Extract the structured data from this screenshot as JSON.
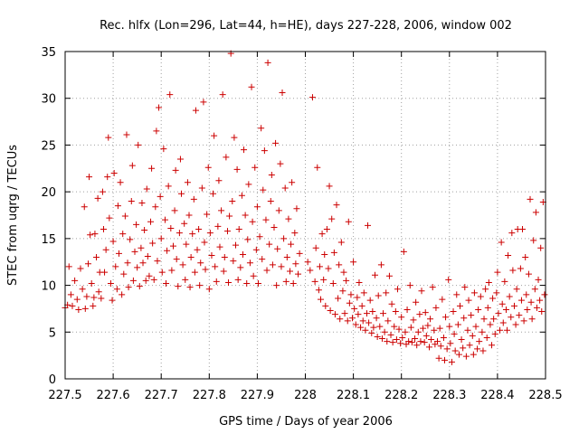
{
  "chart_data": {
    "type": "scatter",
    "title": "Rec. hlfx (Lon=296, Lat=44, h=HE), days 227-228, 2006, window 002",
    "xlabel": "GPS time / Days of year 2006",
    "ylabel": "STEC from uqrg / TECUs",
    "xlim": [
      227.5,
      228.5
    ],
    "ylim": [
      0,
      35
    ],
    "x_ticks": [
      227.5,
      227.6,
      227.7,
      227.8,
      227.9,
      228.0,
      228.1,
      228.2,
      228.3,
      228.4,
      228.5
    ],
    "x_tick_labels": [
      "227.5",
      "227.6",
      "227.7",
      "227.8",
      "227.9",
      "228",
      "228.1",
      "228.2",
      "228.3",
      "228.4",
      "228.5"
    ],
    "y_ticks": [
      0,
      5,
      10,
      15,
      20,
      25,
      30,
      35
    ],
    "y_tick_labels": [
      "0",
      "5",
      "10",
      "15",
      "20",
      "25",
      "30",
      "35"
    ],
    "grid": true,
    "marker": "+",
    "marker_color": "#cc0000",
    "points": [
      [
        227.5,
        7.6
      ],
      [
        227.505,
        7.9
      ],
      [
        227.508,
        12.0
      ],
      [
        227.512,
        9.0
      ],
      [
        227.515,
        7.8
      ],
      [
        227.52,
        10.5
      ],
      [
        227.525,
        8.5
      ],
      [
        227.528,
        7.4
      ],
      [
        227.532,
        11.8
      ],
      [
        227.536,
        9.6
      ],
      [
        227.54,
        18.4
      ],
      [
        227.542,
        7.5
      ],
      [
        227.545,
        8.8
      ],
      [
        227.548,
        12.3
      ],
      [
        227.55,
        21.6
      ],
      [
        227.552,
        15.4
      ],
      [
        227.555,
        10.2
      ],
      [
        227.558,
        7.8
      ],
      [
        227.56,
        8.7
      ],
      [
        227.562,
        15.5
      ],
      [
        227.565,
        13.0
      ],
      [
        227.568,
        19.3
      ],
      [
        227.57,
        9.3
      ],
      [
        227.572,
        11.4
      ],
      [
        227.575,
        8.6
      ],
      [
        227.578,
        20.0
      ],
      [
        227.58,
        16.0
      ],
      [
        227.582,
        11.4
      ],
      [
        227.585,
        13.8
      ],
      [
        227.588,
        21.6
      ],
      [
        227.59,
        25.8
      ],
      [
        227.592,
        17.2
      ],
      [
        227.595,
        10.2
      ],
      [
        227.598,
        8.4
      ],
      [
        227.6,
        14.7
      ],
      [
        227.602,
        22.0
      ],
      [
        227.605,
        12.0
      ],
      [
        227.608,
        9.6
      ],
      [
        227.61,
        18.5
      ],
      [
        227.612,
        13.4
      ],
      [
        227.615,
        21.0
      ],
      [
        227.618,
        9.0
      ],
      [
        227.62,
        15.5
      ],
      [
        227.622,
        11.2
      ],
      [
        227.625,
        17.4
      ],
      [
        227.628,
        26.1
      ],
      [
        227.63,
        12.4
      ],
      [
        227.632,
        9.8
      ],
      [
        227.635,
        14.9
      ],
      [
        227.638,
        19.0
      ],
      [
        227.64,
        22.8
      ],
      [
        227.642,
        10.5
      ],
      [
        227.645,
        13.6
      ],
      [
        227.648,
        16.5
      ],
      [
        227.65,
        11.9
      ],
      [
        227.652,
        25.0
      ],
      [
        227.655,
        9.9
      ],
      [
        227.658,
        14.0
      ],
      [
        227.66,
        18.8
      ],
      [
        227.662,
        12.4
      ],
      [
        227.665,
        15.9
      ],
      [
        227.668,
        10.5
      ],
      [
        227.67,
        20.3
      ],
      [
        227.672,
        13.1
      ],
      [
        227.675,
        11.0
      ],
      [
        227.678,
        16.8
      ],
      [
        227.68,
        22.5
      ],
      [
        227.682,
        14.5
      ],
      [
        227.685,
        10.6
      ],
      [
        227.688,
        18.4
      ],
      [
        227.69,
        26.5
      ],
      [
        227.692,
        12.6
      ],
      [
        227.695,
        29.0
      ],
      [
        227.698,
        19.5
      ],
      [
        227.7,
        15.0
      ],
      [
        227.702,
        11.4
      ],
      [
        227.705,
        24.6
      ],
      [
        227.708,
        17.0
      ],
      [
        227.71,
        10.2
      ],
      [
        227.712,
        13.7
      ],
      [
        227.715,
        20.6
      ],
      [
        227.718,
        30.4
      ],
      [
        227.72,
        16.1
      ],
      [
        227.722,
        11.6
      ],
      [
        227.725,
        14.2
      ],
      [
        227.728,
        18.0
      ],
      [
        227.73,
        22.3
      ],
      [
        227.732,
        12.8
      ],
      [
        227.735,
        9.9
      ],
      [
        227.738,
        15.6
      ],
      [
        227.74,
        23.5
      ],
      [
        227.742,
        19.8
      ],
      [
        227.745,
        12.2
      ],
      [
        227.748,
        16.6
      ],
      [
        227.75,
        10.6
      ],
      [
        227.752,
        14.4
      ],
      [
        227.755,
        21.0
      ],
      [
        227.758,
        17.5
      ],
      [
        227.76,
        9.8
      ],
      [
        227.762,
        13.0
      ],
      [
        227.765,
        15.5
      ],
      [
        227.768,
        19.2
      ],
      [
        227.77,
        11.4
      ],
      [
        227.772,
        28.7
      ],
      [
        227.775,
        13.8
      ],
      [
        227.778,
        16.0
      ],
      [
        227.78,
        10.0
      ],
      [
        227.782,
        12.4
      ],
      [
        227.785,
        20.4
      ],
      [
        227.788,
        29.6
      ],
      [
        227.79,
        14.6
      ],
      [
        227.792,
        11.7
      ],
      [
        227.795,
        17.6
      ],
      [
        227.798,
        22.6
      ],
      [
        227.8,
        9.6
      ],
      [
        227.802,
        15.6
      ],
      [
        227.805,
        13.2
      ],
      [
        227.808,
        19.8
      ],
      [
        227.81,
        26.0
      ],
      [
        227.812,
        12.0
      ],
      [
        227.815,
        10.4
      ],
      [
        227.818,
        16.3
      ],
      [
        227.82,
        21.2
      ],
      [
        227.822,
        14.1
      ],
      [
        227.825,
        18.0
      ],
      [
        227.828,
        30.4
      ],
      [
        227.83,
        11.5
      ],
      [
        227.832,
        13.0
      ],
      [
        227.835,
        23.7
      ],
      [
        227.838,
        15.8
      ],
      [
        227.84,
        10.3
      ],
      [
        227.842,
        17.4
      ],
      [
        227.845,
        34.8
      ],
      [
        227.848,
        19.0
      ],
      [
        227.85,
        12.6
      ],
      [
        227.852,
        25.8
      ],
      [
        227.855,
        14.3
      ],
      [
        227.858,
        22.4
      ],
      [
        227.86,
        10.6
      ],
      [
        227.862,
        16.0
      ],
      [
        227.865,
        11.9
      ],
      [
        227.868,
        19.6
      ],
      [
        227.87,
        13.3
      ],
      [
        227.872,
        24.5
      ],
      [
        227.875,
        17.5
      ],
      [
        227.878,
        10.2
      ],
      [
        227.88,
        14.9
      ],
      [
        227.882,
        20.8
      ],
      [
        227.885,
        12.4
      ],
      [
        227.888,
        31.2
      ],
      [
        227.89,
        16.8
      ],
      [
        227.892,
        11.0
      ],
      [
        227.895,
        22.6
      ],
      [
        227.898,
        13.8
      ],
      [
        227.9,
        18.4
      ],
      [
        227.902,
        10.2
      ],
      [
        227.905,
        15.2
      ],
      [
        227.908,
        26.8
      ],
      [
        227.91,
        12.8
      ],
      [
        227.912,
        20.2
      ],
      [
        227.915,
        24.4
      ],
      [
        227.918,
        17.0
      ],
      [
        227.92,
        11.6
      ],
      [
        227.922,
        33.8
      ],
      [
        227.925,
        14.4
      ],
      [
        227.928,
        19.0
      ],
      [
        227.93,
        21.8
      ],
      [
        227.932,
        12.2
      ],
      [
        227.935,
        16.2
      ],
      [
        227.938,
        25.2
      ],
      [
        227.94,
        10.0
      ],
      [
        227.942,
        13.9
      ],
      [
        227.945,
        18.0
      ],
      [
        227.948,
        23.0
      ],
      [
        227.95,
        12.0
      ],
      [
        227.952,
        30.6
      ],
      [
        227.955,
        15.0
      ],
      [
        227.958,
        20.4
      ],
      [
        227.96,
        10.4
      ],
      [
        227.962,
        13.0
      ],
      [
        227.965,
        17.1
      ],
      [
        227.968,
        11.5
      ],
      [
        227.97,
        14.4
      ],
      [
        227.972,
        21.0
      ],
      [
        227.975,
        10.2
      ],
      [
        227.978,
        15.6
      ],
      [
        227.98,
        12.3
      ],
      [
        227.982,
        18.2
      ],
      [
        227.985,
        11.2
      ],
      [
        227.988,
        13.4
      ],
      [
        228.005,
        12.5
      ],
      [
        228.01,
        11.6
      ],
      [
        228.015,
        30.1
      ],
      [
        228.02,
        10.4
      ],
      [
        228.022,
        14.0
      ],
      [
        228.025,
        22.6
      ],
      [
        228.028,
        9.5
      ],
      [
        228.03,
        12.0
      ],
      [
        228.032,
        8.5
      ],
      [
        228.035,
        15.5
      ],
      [
        228.038,
        10.6
      ],
      [
        228.04,
        13.3
      ],
      [
        228.042,
        7.8
      ],
      [
        228.045,
        16.0
      ],
      [
        228.048,
        11.8
      ],
      [
        228.05,
        20.6
      ],
      [
        228.052,
        7.3
      ],
      [
        228.055,
        17.1
      ],
      [
        228.058,
        10.2
      ],
      [
        228.06,
        13.5
      ],
      [
        228.062,
        6.9
      ],
      [
        228.065,
        18.6
      ],
      [
        228.068,
        8.6
      ],
      [
        228.07,
        12.2
      ],
      [
        228.072,
        6.4
      ],
      [
        228.075,
        14.6
      ],
      [
        228.078,
        9.4
      ],
      [
        228.08,
        11.4
      ],
      [
        228.082,
        7.0
      ],
      [
        228.085,
        10.5
      ],
      [
        228.088,
        6.2
      ],
      [
        228.09,
        16.8
      ],
      [
        228.092,
        8.1
      ],
      [
        228.095,
        9.0
      ],
      [
        228.098,
        6.5
      ],
      [
        228.1,
        12.5
      ],
      [
        228.102,
        7.5
      ],
      [
        228.105,
        5.8
      ],
      [
        228.108,
        8.7
      ],
      [
        228.11,
        6.9
      ],
      [
        228.112,
        10.3
      ],
      [
        228.115,
        5.5
      ],
      [
        228.118,
        7.8
      ],
      [
        228.12,
        6.2
      ],
      [
        228.122,
        9.2
      ],
      [
        228.125,
        5.2
      ],
      [
        228.128,
        7.0
      ],
      [
        228.13,
        16.4
      ],
      [
        228.132,
        6.0
      ],
      [
        228.135,
        8.4
      ],
      [
        228.138,
        4.9
      ],
      [
        228.14,
        7.2
      ],
      [
        228.142,
        5.5
      ],
      [
        228.145,
        11.1
      ],
      [
        228.148,
        6.5
      ],
      [
        228.15,
        4.5
      ],
      [
        228.152,
        8.9
      ],
      [
        228.155,
        5.6
      ],
      [
        228.158,
        12.2
      ],
      [
        228.16,
        4.3
      ],
      [
        228.162,
        7.0
      ],
      [
        228.165,
        5.0
      ],
      [
        228.168,
        9.2
      ],
      [
        228.17,
        4.0
      ],
      [
        228.172,
        6.2
      ],
      [
        228.175,
        11.0
      ],
      [
        228.178,
        4.7
      ],
      [
        228.18,
        8.0
      ],
      [
        228.182,
        3.9
      ],
      [
        228.185,
        5.6
      ],
      [
        228.188,
        7.2
      ],
      [
        228.19,
        4.2
      ],
      [
        228.192,
        9.6
      ],
      [
        228.195,
        5.3
      ],
      [
        228.198,
        3.8
      ],
      [
        228.2,
        6.6
      ],
      [
        228.202,
        4.4
      ],
      [
        228.205,
        13.6
      ],
      [
        228.208,
        5.0
      ],
      [
        228.21,
        3.7
      ],
      [
        228.212,
        7.4
      ],
      [
        228.215,
        4.0
      ],
      [
        228.218,
        10.0
      ],
      [
        228.22,
        5.5
      ],
      [
        228.222,
        3.9
      ],
      [
        228.225,
        6.3
      ],
      [
        228.228,
        4.3
      ],
      [
        228.23,
        8.2
      ],
      [
        228.232,
        3.6
      ],
      [
        228.235,
        5.0
      ],
      [
        228.238,
        6.9
      ],
      [
        228.24,
        4.0
      ],
      [
        228.242,
        9.4
      ],
      [
        228.245,
        5.4
      ],
      [
        228.248,
        3.9
      ],
      [
        228.25,
        7.1
      ],
      [
        228.252,
        4.6
      ],
      [
        228.255,
        5.7
      ],
      [
        228.258,
        3.4
      ],
      [
        228.26,
        6.4
      ],
      [
        228.262,
        4.2
      ],
      [
        228.265,
        9.8
      ],
      [
        228.268,
        5.2
      ],
      [
        228.27,
        3.7
      ],
      [
        228.272,
        7.6
      ],
      [
        228.275,
        4.0
      ],
      [
        228.278,
        2.2
      ],
      [
        228.28,
        5.4
      ],
      [
        228.282,
        3.5
      ],
      [
        228.285,
        8.5
      ],
      [
        228.288,
        4.4
      ],
      [
        228.29,
        2.0
      ],
      [
        228.292,
        6.6
      ],
      [
        228.295,
        3.2
      ],
      [
        228.298,
        10.6
      ],
      [
        228.3,
        5.6
      ],
      [
        228.302,
        3.8
      ],
      [
        228.305,
        1.8
      ],
      [
        228.308,
        7.2
      ],
      [
        228.31,
        4.8
      ],
      [
        228.312,
        3.0
      ],
      [
        228.315,
        9.0
      ],
      [
        228.318,
        5.8
      ],
      [
        228.32,
        2.6
      ],
      [
        228.322,
        7.8
      ],
      [
        228.325,
        4.2
      ],
      [
        228.328,
        3.3
      ],
      [
        228.33,
        6.5
      ],
      [
        228.332,
        9.8
      ],
      [
        228.335,
        2.4
      ],
      [
        228.338,
        5.2
      ],
      [
        228.34,
        8.4
      ],
      [
        228.342,
        3.6
      ],
      [
        228.345,
        6.8
      ],
      [
        228.348,
        4.6
      ],
      [
        228.35,
        2.6
      ],
      [
        228.352,
        9.2
      ],
      [
        228.355,
        5.6
      ],
      [
        228.358,
        3.2
      ],
      [
        228.36,
        7.4
      ],
      [
        228.362,
        4.0
      ],
      [
        228.365,
        8.8
      ],
      [
        228.368,
        5.0
      ],
      [
        228.37,
        3.0
      ],
      [
        228.372,
        6.4
      ],
      [
        228.375,
        9.6
      ],
      [
        228.378,
        4.4
      ],
      [
        228.38,
        7.6
      ],
      [
        228.382,
        10.3
      ],
      [
        228.385,
        5.8
      ],
      [
        228.388,
        3.6
      ],
      [
        228.39,
        8.6
      ],
      [
        228.392,
        6.4
      ],
      [
        228.395,
        4.8
      ],
      [
        228.398,
        9.2
      ],
      [
        228.4,
        11.4
      ],
      [
        228.402,
        7.0
      ],
      [
        228.405,
        5.2
      ],
      [
        228.408,
        14.6
      ],
      [
        228.41,
        8.0
      ],
      [
        228.412,
        6.0
      ],
      [
        228.415,
        10.4
      ],
      [
        228.418,
        7.4
      ],
      [
        228.42,
        5.2
      ],
      [
        228.422,
        13.2
      ],
      [
        228.425,
        8.8
      ],
      [
        228.428,
        6.6
      ],
      [
        228.43,
        15.6
      ],
      [
        228.432,
        11.6
      ],
      [
        228.435,
        7.8
      ],
      [
        228.438,
        5.8
      ],
      [
        228.44,
        9.6
      ],
      [
        228.442,
        16.0
      ],
      [
        228.445,
        6.8
      ],
      [
        228.448,
        11.8
      ],
      [
        228.45,
        8.4
      ],
      [
        228.452,
        16.0
      ],
      [
        228.455,
        6.2
      ],
      [
        228.458,
        13.0
      ],
      [
        228.46,
        9.0
      ],
      [
        228.462,
        7.4
      ],
      [
        228.465,
        11.2
      ],
      [
        228.468,
        19.2
      ],
      [
        228.47,
        8.2
      ],
      [
        228.472,
        6.4
      ],
      [
        228.475,
        14.8
      ],
      [
        228.478,
        9.6
      ],
      [
        228.48,
        17.8
      ],
      [
        228.482,
        7.6
      ],
      [
        228.485,
        10.6
      ],
      [
        228.488,
        8.4
      ],
      [
        228.49,
        14.0
      ],
      [
        228.492,
        7.2
      ],
      [
        228.495,
        18.9
      ],
      [
        228.498,
        9.0
      ]
    ]
  }
}
